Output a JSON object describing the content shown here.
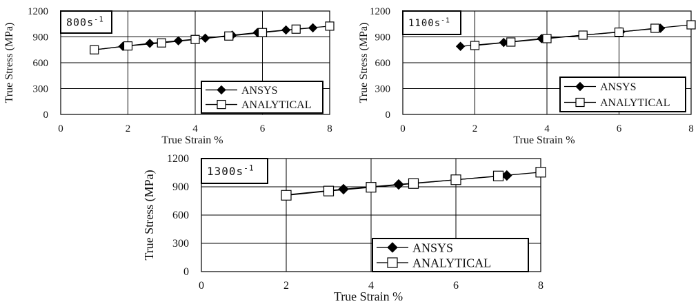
{
  "chart_data": [
    {
      "type": "line",
      "strain_rate": {
        "base": "800s",
        "sup": "-1"
      },
      "xlabel": "True Strain %",
      "ylabel": "True Stress (MPa)",
      "xlim": [
        0,
        8
      ],
      "ylim": [
        0,
        1200
      ],
      "xticks": [
        "0",
        "2",
        "4",
        "6",
        "8"
      ],
      "yticks": [
        "0",
        "300",
        "600",
        "900",
        "1200"
      ],
      "grid": true,
      "legend_position": "bottom-right",
      "series": [
        {
          "name": "ANSYS",
          "marker": "diamond",
          "x": [
            1.0,
            1.85,
            2.65,
            3.5,
            4.3,
            5.1,
            5.85,
            6.7,
            7.5
          ],
          "y": [
            750,
            790,
            825,
            855,
            885,
            920,
            950,
            980,
            1005
          ]
        },
        {
          "name": "ANALYTICAL",
          "marker": "square",
          "x": [
            1,
            2,
            3,
            4,
            5,
            6,
            7,
            8
          ],
          "y": [
            750,
            795,
            830,
            870,
            910,
            950,
            990,
            1025
          ]
        }
      ]
    },
    {
      "type": "line",
      "strain_rate": {
        "base": "1100s",
        "sup": "-1"
      },
      "xlabel": "True Strain %",
      "ylabel": "True Stress (MPa)",
      "xlim": [
        0,
        8
      ],
      "ylim": [
        0,
        1200
      ],
      "xticks": [
        "0",
        "2",
        "4",
        "6",
        "8"
      ],
      "yticks": [
        "0",
        "300",
        "600",
        "900",
        "1200"
      ],
      "grid": true,
      "legend_position": "bottom-right",
      "series": [
        {
          "name": "ANSYS",
          "marker": "diamond",
          "x": [
            1.6,
            2.8,
            3.85,
            5.0,
            6.05,
            7.15
          ],
          "y": [
            790,
            835,
            880,
            920,
            960,
            1000
          ]
        },
        {
          "name": "ANALYTICAL",
          "marker": "square",
          "x": [
            2,
            3,
            4,
            5,
            6,
            7,
            8
          ],
          "y": [
            800,
            840,
            880,
            920,
            955,
            1000,
            1040
          ]
        }
      ]
    },
    {
      "type": "line",
      "strain_rate": {
        "base": "1300s",
        "sup": "-1"
      },
      "xlabel": "True Strain %",
      "ylabel": "True Stress (MPa)",
      "xlim": [
        0,
        8
      ],
      "ylim": [
        0,
        1200
      ],
      "xticks": [
        "0",
        "2",
        "4",
        "6",
        "8"
      ],
      "yticks": [
        "0",
        "300",
        "600",
        "900",
        "1200"
      ],
      "grid": true,
      "legend_position": "bottom-right",
      "series": [
        {
          "name": "ANSYS",
          "marker": "diamond",
          "x": [
            2.0,
            3.35,
            4.65,
            6.0,
            7.2
          ],
          "y": [
            815,
            875,
            925,
            975,
            1020
          ]
        },
        {
          "name": "ANALYTICAL",
          "marker": "square",
          "x": [
            2,
            3,
            4,
            5,
            6,
            7,
            8
          ],
          "y": [
            810,
            855,
            895,
            935,
            975,
            1015,
            1055
          ]
        }
      ]
    }
  ]
}
